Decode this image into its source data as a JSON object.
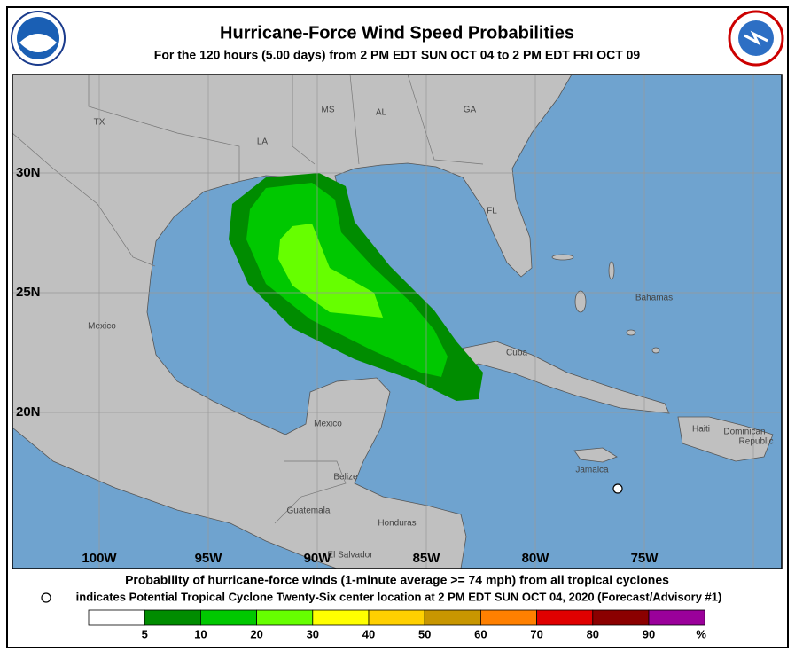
{
  "header": {
    "title": "Hurricane-Force Wind Speed Probabilities",
    "subtitle": "For the 120 hours (5.00 days) from 2 PM EDT SUN OCT 04 to 2 PM EDT FRI OCT 09"
  },
  "map": {
    "lat_labels": [
      "30N",
      "25N",
      "20N"
    ],
    "lon_labels": [
      "100W",
      "95W",
      "90W",
      "85W",
      "80W",
      "75W"
    ],
    "place_labels": [
      "TX",
      "MS",
      "AL",
      "GA",
      "LA",
      "FL",
      "Bahamas",
      "Mexico",
      "Cuba",
      "Haiti",
      "Dominican",
      "Republic",
      "Mexico",
      "Jamaica",
      "Belize",
      "Guatemala",
      "Honduras",
      "El Salvador"
    ]
  },
  "footer": {
    "caption": "Probability of hurricane-force winds (1-minute average >= 74 mph) from all tropical cyclones",
    "note": "indicates Potential Tropical Cyclone Twenty-Six center location at 2 PM EDT SUN OCT 04, 2020 (Forecast/Advisory #1)"
  },
  "legend": {
    "colors": [
      "#ffffff",
      "#008c00",
      "#00c800",
      "#66ff00",
      "#ffff00",
      "#ffd000",
      "#c89600",
      "#ff8000",
      "#e00000",
      "#8b0000",
      "#9a009a"
    ],
    "labels": [
      5,
      10,
      20,
      30,
      40,
      50,
      60,
      70,
      80,
      90
    ],
    "unit": "%"
  }
}
